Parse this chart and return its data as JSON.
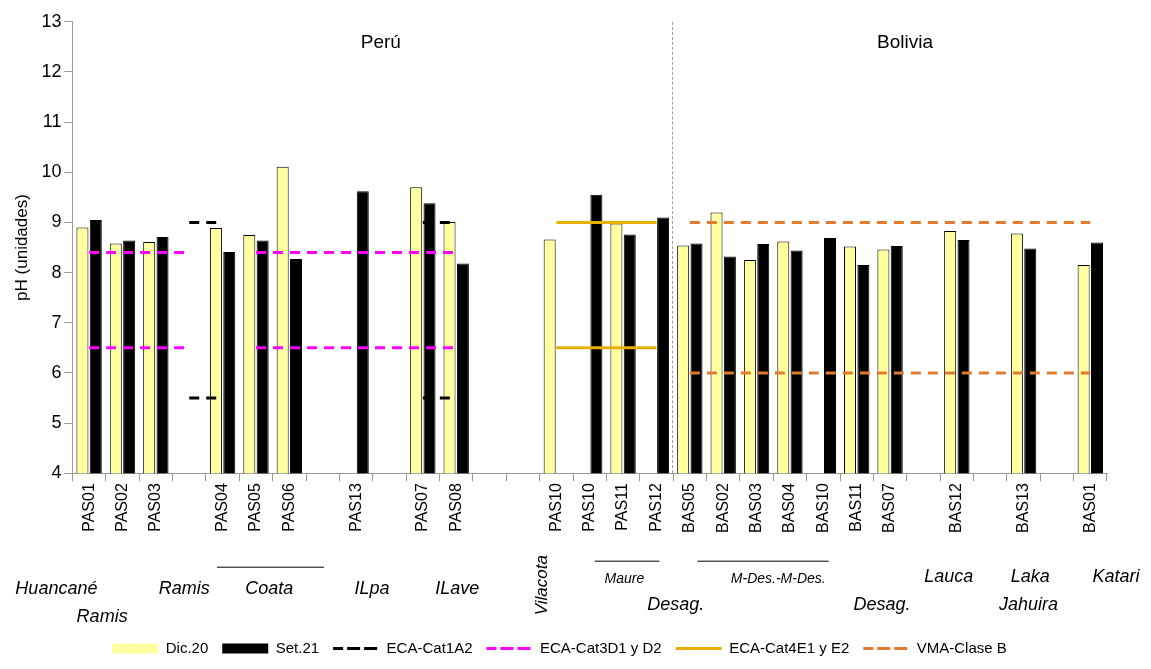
{
  "chart_data": {
    "type": "bar",
    "ylabel": "pH (unidades)",
    "categories": [
      "PAS01",
      "PAS02",
      "PAS03",
      null,
      "PAS04",
      "PAS05",
      "PAS06",
      null,
      "PAS13",
      null,
      "PAS07",
      "PAS08",
      null,
      null,
      "PAS10",
      "PAS10",
      "PAS11",
      "PAS12",
      "BAS05",
      "BAS02",
      "BAS03",
      "BAS04",
      "BAS10",
      "BAS11",
      "BAS07",
      null,
      "BAS12",
      null,
      "BAS13",
      null,
      "BAS01"
    ],
    "series": [
      {
        "name": "Dic.20",
        "color": "#ffffa0",
        "values": [
          8.9,
          8.58,
          8.61,
          null,
          8.89,
          8.75,
          10.11,
          null,
          null,
          null,
          9.7,
          9.01,
          null,
          null,
          8.66,
          null,
          8.98,
          null,
          8.54,
          9.2,
          8.25,
          8.62,
          null,
          8.52,
          8.46,
          null,
          8.83,
          null,
          8.78,
          null,
          8.15
        ]
      },
      {
        "name": "Set.21",
        "color": "#000000",
        "values": [
          9.05,
          8.64,
          8.71,
          null,
          8.41,
          8.64,
          8.27,
          null,
          9.62,
          null,
          9.38,
          8.18,
          null,
          null,
          null,
          9.55,
          8.76,
          9.1,
          8.58,
          8.32,
          8.57,
          8.44,
          8.69,
          8.15,
          8.53,
          null,
          8.65,
          null,
          8.48,
          null,
          8.6
        ]
      },
      {
        "name": "ECA-Cat1A2",
        "type": "line",
        "color": "#000000",
        "line_style": "dashed",
        "values": [
          null,
          null,
          null,
          9,
          9,
          null,
          null,
          null,
          null,
          null,
          9,
          9,
          null,
          null,
          null,
          null,
          null,
          null,
          null,
          null,
          null,
          null,
          null,
          null,
          null,
          null,
          null,
          null,
          null,
          null,
          null
        ]
      },
      {
        "type": "line",
        "color": "#000000",
        "line_style": "dashed",
        "values": [
          null,
          null,
          null,
          5.5,
          5.5,
          null,
          null,
          null,
          null,
          null,
          5.5,
          5.5,
          null,
          null,
          null,
          null,
          null,
          null,
          null,
          null,
          null,
          null,
          null,
          null,
          null,
          null,
          null,
          null,
          null,
          null,
          null
        ]
      },
      {
        "name": "ECA-Cat3D1 y D2",
        "type": "line",
        "color": "#ff00ff",
        "line_style": "dashed",
        "values": [
          8.4,
          8.4,
          8.4,
          8.4,
          null,
          8.4,
          8.4,
          8.4,
          8.4,
          8.4,
          8.4,
          8.4,
          null,
          null,
          null,
          null,
          null,
          null,
          null,
          null,
          null,
          null,
          null,
          null,
          null,
          null,
          null,
          null,
          null,
          null,
          null
        ]
      },
      {
        "type": "line",
        "color": "#ff00ff",
        "line_style": "dashed",
        "values": [
          6.5,
          6.5,
          6.5,
          6.5,
          null,
          6.5,
          6.5,
          6.5,
          6.5,
          6.5,
          6.5,
          6.5,
          null,
          null,
          null,
          null,
          null,
          null,
          null,
          null,
          null,
          null,
          null,
          null,
          null,
          null,
          null,
          null,
          null,
          null,
          null
        ]
      },
      {
        "name": "ECA-Cat4E1 y E2",
        "type": "line",
        "color": "#e6b000",
        "line_style": "solid",
        "values": [
          null,
          null,
          null,
          null,
          null,
          null,
          null,
          null,
          null,
          null,
          null,
          null,
          null,
          null,
          9,
          9,
          9,
          9,
          null,
          null,
          null,
          null,
          null,
          null,
          null,
          null,
          null,
          null,
          null,
          null,
          null
        ]
      },
      {
        "type": "line",
        "color": "#e6b000",
        "line_style": "solid",
        "values": [
          null,
          null,
          null,
          null,
          null,
          null,
          null,
          null,
          null,
          null,
          null,
          null,
          null,
          null,
          6.5,
          6.5,
          6.5,
          6.5,
          null,
          null,
          null,
          null,
          null,
          null,
          null,
          null,
          null,
          null,
          null,
          null,
          null
        ]
      },
      {
        "name": "VMA-Clase B",
        "type": "line",
        "color": "#e07b30",
        "line_style": "dashed",
        "values": [
          null,
          null,
          null,
          null,
          null,
          null,
          null,
          null,
          null,
          null,
          null,
          null,
          null,
          null,
          null,
          null,
          null,
          null,
          9,
          9,
          9,
          9,
          9,
          9,
          9,
          9,
          9,
          9,
          9,
          9,
          9
        ]
      },
      {
        "type": "line",
        "color": "#e07b30",
        "line_style": "dashed",
        "values": [
          null,
          null,
          null,
          null,
          null,
          null,
          null,
          null,
          null,
          null,
          null,
          null,
          null,
          null,
          null,
          null,
          null,
          null,
          6,
          6,
          6,
          6,
          6,
          6,
          6,
          6,
          6,
          6,
          6,
          6,
          6
        ]
      }
    ],
    "ylim": [
      4,
      13
    ],
    "yticks": [
      4,
      5,
      6,
      7,
      8,
      9,
      10,
      11,
      12,
      13
    ],
    "grid": false,
    "legend": "bottom",
    "annotations": [
      "Perú",
      "Bolivia",
      "Huancané",
      "Ramis",
      "Ramis",
      "Coata",
      "ILpa",
      "ILave",
      "Vilacota",
      "Maure",
      "Desag.",
      "M-Des.-M-Des.",
      "Desag.",
      "Lauca",
      "Laka",
      "Jahuira",
      "Katari"
    ]
  }
}
